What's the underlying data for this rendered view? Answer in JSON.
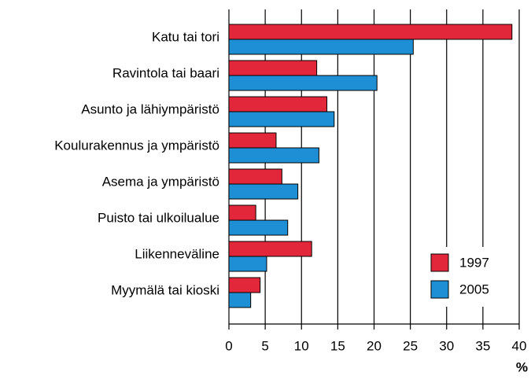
{
  "chart_data": {
    "type": "barh",
    "categories": [
      "Katu tai tori",
      "Ravintola tai baari",
      "Asunto ja lähiympäristö",
      "Koulurakennus ja ympäristö",
      "Asema ja ympäristö",
      "Puisto tai ulkoilualue",
      "Liikenneväline",
      "Myymälä tai kioski"
    ],
    "series": [
      {
        "name": "1997",
        "color": "#e2273a",
        "values": [
          39,
          12.1,
          13.5,
          6.5,
          7.3,
          3.7,
          11.4,
          4.3
        ]
      },
      {
        "name": "2005",
        "color": "#1f8fd5",
        "values": [
          25.4,
          20.4,
          14.5,
          12.4,
          9.5,
          8.1,
          5.2,
          3.0
        ]
      }
    ],
    "xlabel": "%",
    "xlim": [
      0,
      40
    ],
    "xticks": [
      0,
      5,
      10,
      15,
      20,
      25,
      30,
      35,
      40
    ],
    "grid": true,
    "legend": "lower right"
  }
}
